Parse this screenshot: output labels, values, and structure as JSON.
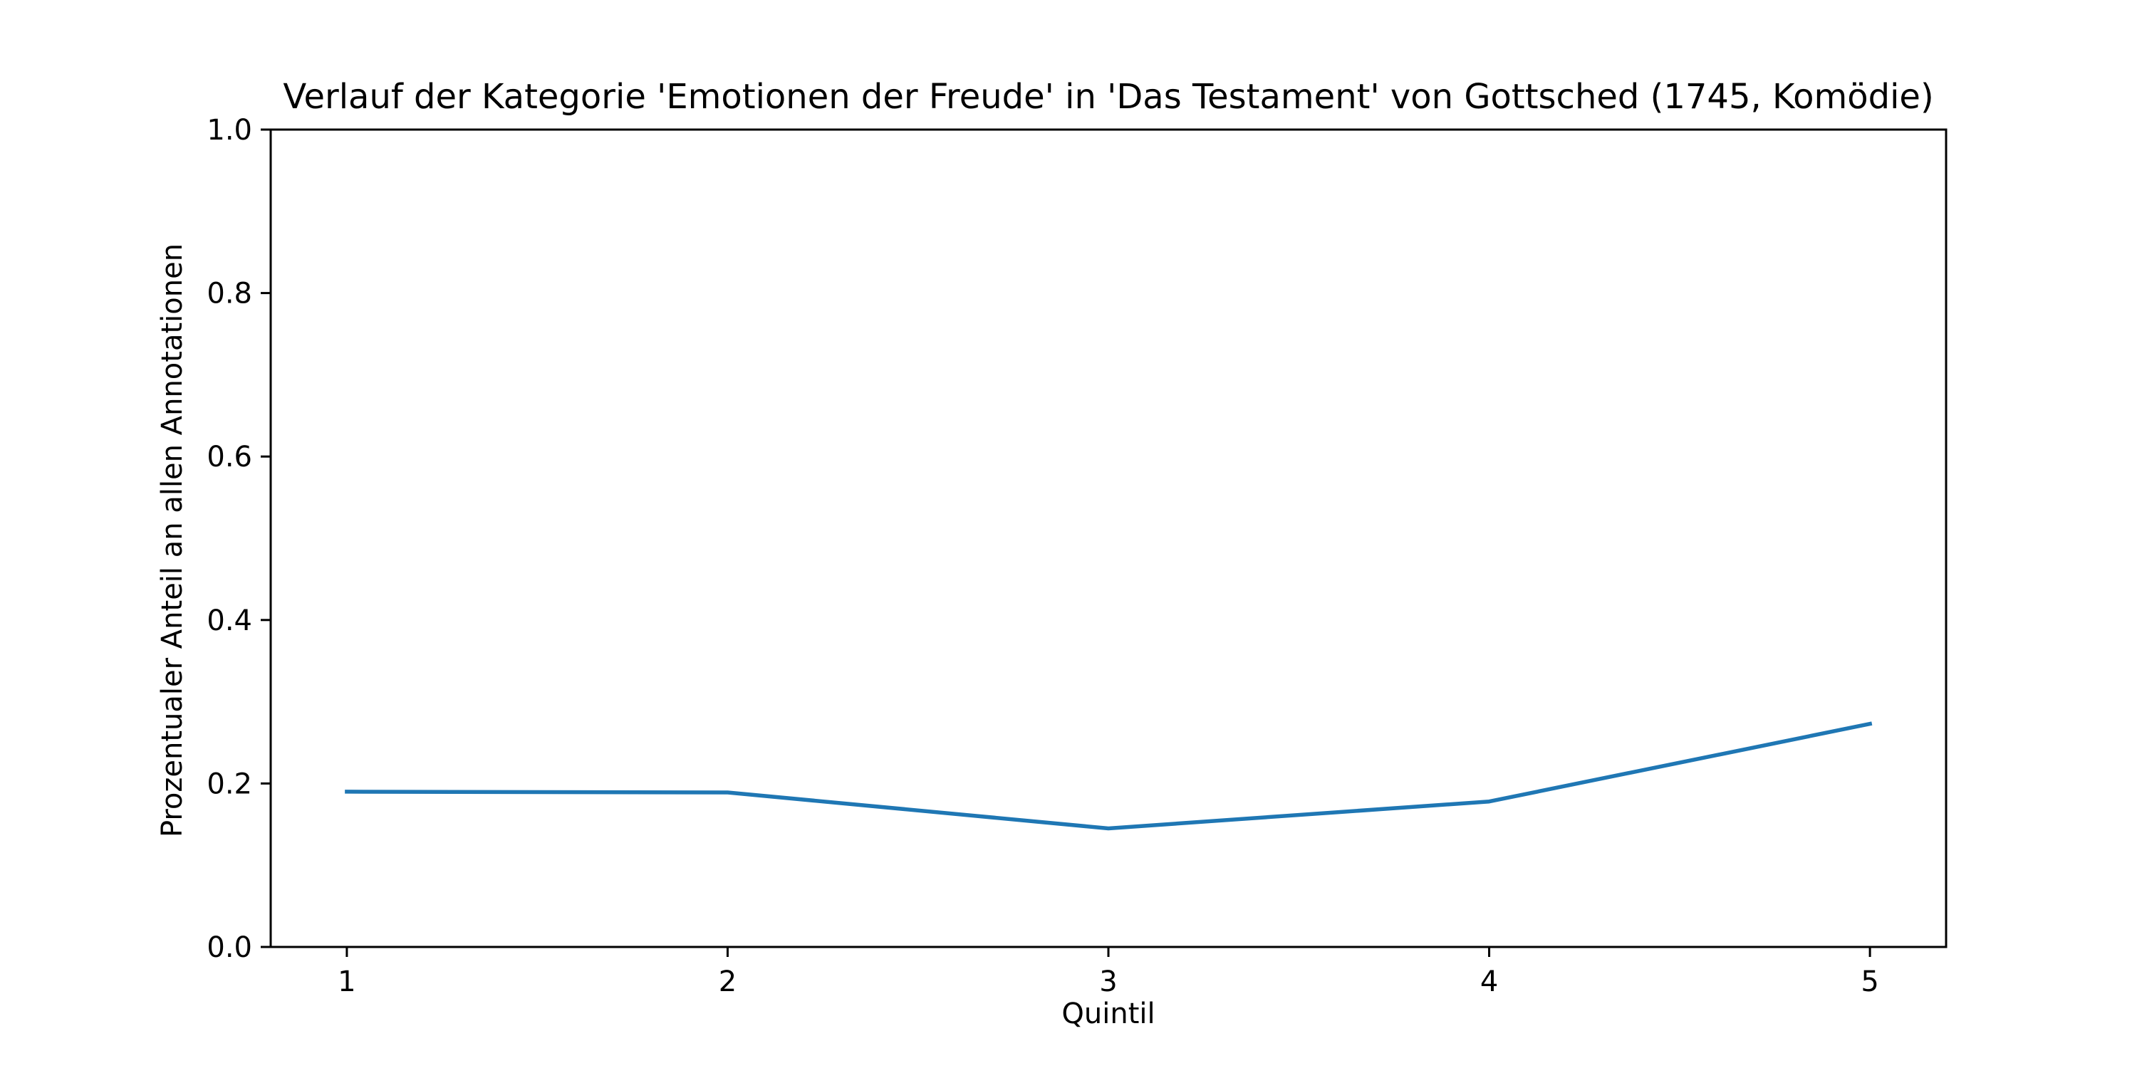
{
  "chart_data": {
    "type": "line",
    "title": "Verlauf der Kategorie 'Emotionen der Freude' in 'Das Testament' von Gottsched (1745, Komödie)",
    "xlabel": "Quintil",
    "ylabel": "Prozentualer Anteil an allen Annotationen",
    "x": [
      1,
      2,
      3,
      4,
      5
    ],
    "xlim": [
      0.8,
      5.2
    ],
    "ylim": [
      0.0,
      1.0
    ],
    "x_ticks": [
      "1",
      "2",
      "3",
      "4",
      "5"
    ],
    "y_ticks": [
      "0.0",
      "0.2",
      "0.4",
      "0.6",
      "0.8",
      "1.0"
    ],
    "grid": false,
    "series": [
      {
        "values": [
          0.19,
          0.189,
          0.145,
          0.178,
          0.273
        ],
        "color": "#1f77b4"
      }
    ]
  }
}
